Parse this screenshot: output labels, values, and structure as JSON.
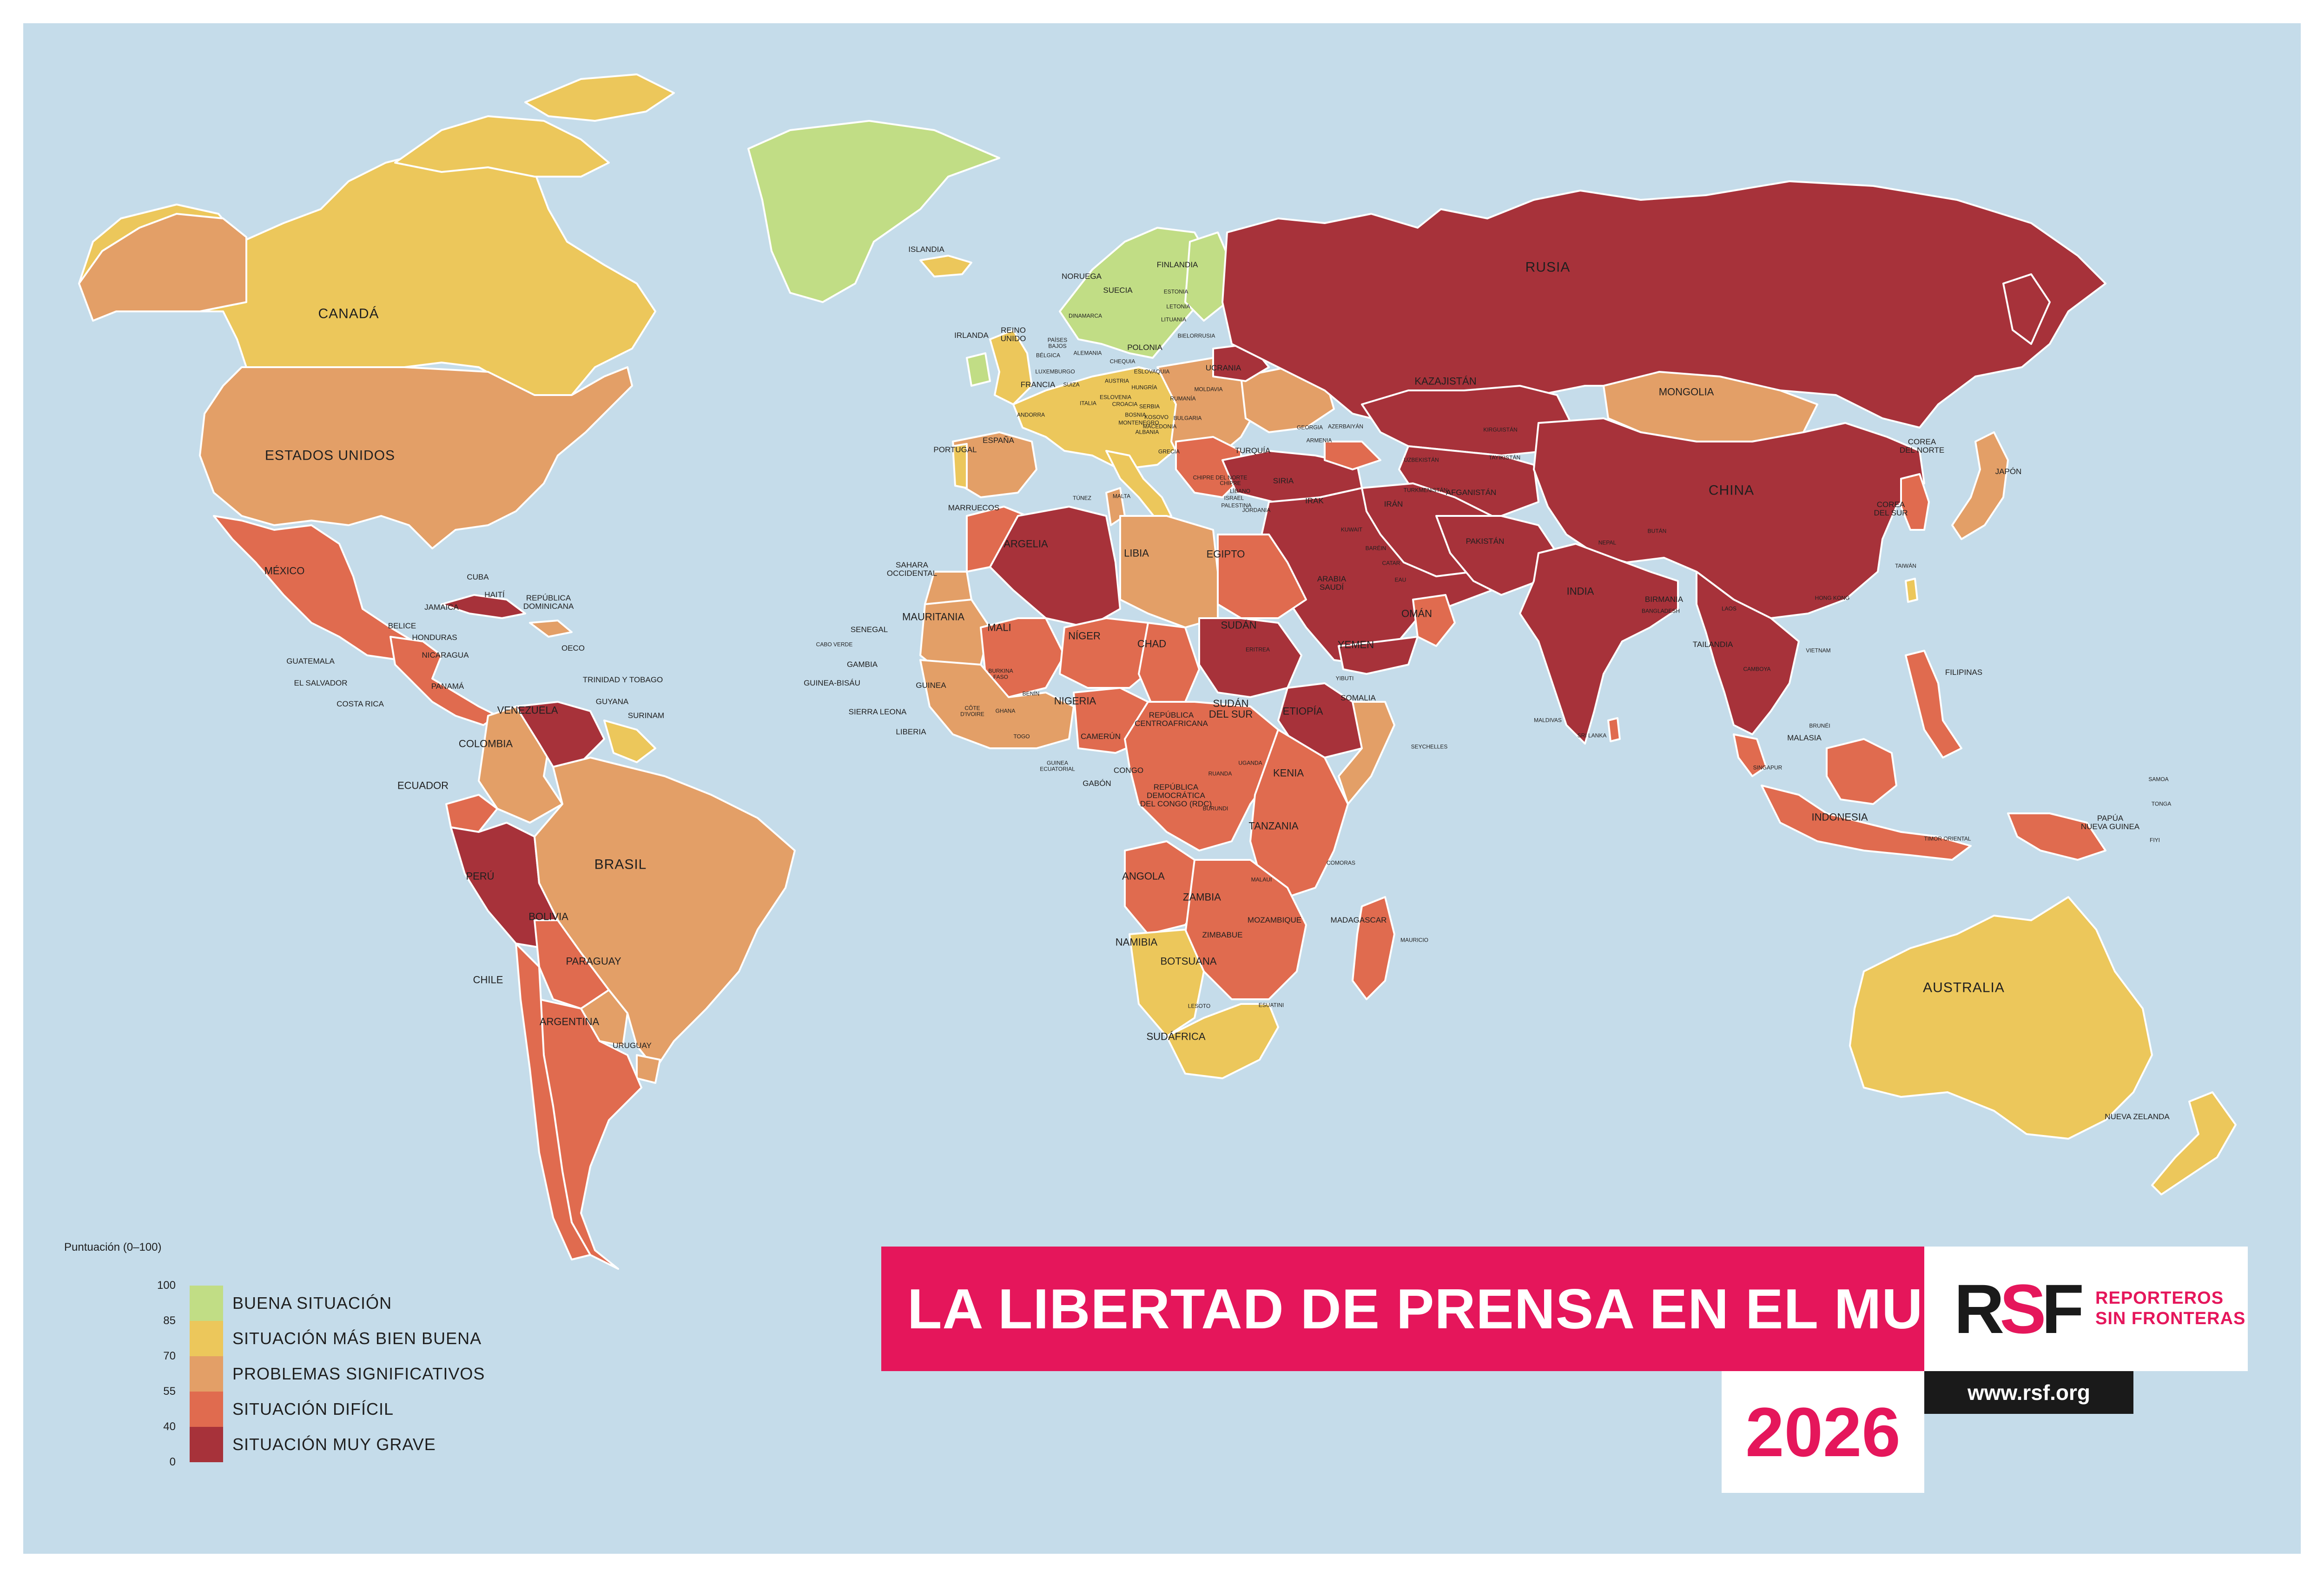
{
  "title": "LA LIBERTAD DE PRENSA EN EL MUNDO",
  "year": "2026",
  "organization": {
    "name_line1": "REPORTEROS",
    "name_line2": "SIN FRONTERAS",
    "mark": "RSF",
    "url": "www.rsf.org"
  },
  "legend": {
    "heading": "Puntuación (0–100)",
    "ticks": [
      "100",
      "85",
      "70",
      "55",
      "40",
      "0"
    ],
    "categories": [
      {
        "label": "BUENA SITUACIÓN",
        "range": [
          85,
          100
        ],
        "color": "#c1dd85"
      },
      {
        "label": "SITUACIÓN MÁS BIEN BUENA",
        "range": [
          70,
          85
        ],
        "color": "#ecc75b"
      },
      {
        "label": "PROBLEMAS SIGNIFICATIVOS",
        "range": [
          55,
          70
        ],
        "color": "#e39f67"
      },
      {
        "label": "SITUACIÓN DIFÍCIL",
        "range": [
          40,
          55
        ],
        "color": "#e06b4f"
      },
      {
        "label": "SITUACIÓN MUY GRAVE",
        "range": [
          0,
          40
        ],
        "color": "#a7323a"
      }
    ]
  },
  "colors": {
    "ocean": "#c5dcea",
    "banner": "#e5165b"
  },
  "countries": {
    "rusia": "RUSIA",
    "china": "CHINA",
    "canada": "CANADÁ",
    "estados_unidos": "ESTADOS UNIDOS",
    "brasil": "BRASIL",
    "australia": "AUSTRALIA",
    "india": "INDIA",
    "mongolia": "MONGOLIA",
    "kazajistan": "KAZAJISTÁN",
    "mexico": "MÉXICO",
    "argelia": "ARGELIA",
    "libia": "LIBIA",
    "egipto": "EGIPTO",
    "sudan": "SUDÁN",
    "sudan_sur": "SUDÁN\nDEL SUR",
    "chad": "CHAD",
    "niger": "NÍGER",
    "mali": "MALI",
    "mauritania": "MAURITANIA",
    "nigeria": "NIGERIA",
    "etiopia": "ETIOPÍA",
    "kenia": "KENIA",
    "tanzania": "TANZANIA",
    "angola": "ANGOLA",
    "zambia": "ZAMBIA",
    "namibia": "NAMIBIA",
    "botsuana": "BOTSUANA",
    "sudafrica": "SUDÁFRICA",
    "madagascar": "MADAGASCAR",
    "mozambique": "MOZAMBIQUE",
    "zimbabue": "ZIMBABUE",
    "rdc": "REPÚBLICA\nDEMOCRÁTICA\nDEL CONGO (RDC)",
    "rca": "REPÚBLICA\nCENTROAFRICANA",
    "camerun": "CAMERÚN",
    "gabon": "GABÓN",
    "congo": "CONGO",
    "somalia": "SOMALIA",
    "yemen": "YEMEN",
    "oman": "OMÁN",
    "arabia_saudi": "ARABIA\nSAUDÍ",
    "iran": "IRÁN",
    "irak": "IRAK",
    "siria": "SIRIA",
    "turquia": "TURQUÍA",
    "afganistan": "AFGANISTÁN",
    "pakistan": "PAKISTÁN",
    "birmania": "BIRMANIA",
    "tailandia": "TAILANDIA",
    "indonesia": "INDONESIA",
    "malasia": "MALASIA",
    "filipinas": "FILIPINAS",
    "japon": "JAPÓN",
    "corea_norte": "COREA\nDEL NORTE",
    "corea_sur": "COREA\nDEL SUR",
    "colombia": "COLOMBIA",
    "venezuela": "VENEZUELA",
    "peru": "PERÚ",
    "bolivia": "BOLIVIA",
    "paraguay": "PARAGUAY",
    "argentina": "ARGENTINA",
    "chile": "CHILE",
    "uruguay": "URUGUAY",
    "ecuador": "ECUADOR",
    "ucrania": "UCRANIA",
    "polonia": "POLONIA",
    "alemania": "ALEMANIA",
    "francia": "FRANCIA",
    "espana": "ESPAÑA",
    "portugal": "PORTUGAL",
    "italia": "ITALIA",
    "reino_unido": "REINO\nUNIDO",
    "irlanda": "IRLANDA",
    "islandia": "ISLANDIA",
    "noruega": "NORUEGA",
    "suecia": "SUECIA",
    "finlandia": "FINLANDIA",
    "bielorrusia": "BIELORRUSIA",
    "marruecos": "MARRUECOS",
    "tunez": "TÚNEZ",
    "sahara": "SAHARA\nOCCIDENTAL",
    "papua": "PAPÚA\nNUEVA GUINEA",
    "nueva_zelanda": "NUEVA ZELANDA",
    "cuba": "CUBA",
    "haiti": "HAITÍ",
    "rep_dominicana": "REPÚBLICA\nDOMINICANA",
    "jamaica": "JAMAICA",
    "belice": "BELICE",
    "honduras": "HONDURAS",
    "guatemala": "GUATEMALA",
    "nicaragua": "NICARAGUA",
    "el_salvador": "EL SALVADOR",
    "costa_rica": "COSTA RICA",
    "panama": "PANAMÁ",
    "guyana": "GUYANA",
    "surinam": "SURINAM",
    "trinidad": "TRINIDAD Y TOBAGO",
    "senegal": "SENEGAL",
    "gambia": "GAMBIA",
    "guinea_bisau": "GUINEA-BISÁU",
    "guinea": "GUINEA",
    "sierra_leona": "SIERRA LEONA",
    "liberia": "LIBERIA",
    "costa_marfil": "CÔTE\nD'IVOIRE",
    "ghana": "GHANA",
    "togo": "TOGO",
    "benin": "BENÍN",
    "burkina": "BURKINA\nFASO",
    "cabo_verde": "CABO VERDE",
    "guinea_ecuatorial": "GUINEA\nECUATORIAL",
    "uganda": "UGANDA",
    "ruanda": "RUANDA",
    "burundi": "BURUNDI",
    "malaui": "MALAUI",
    "lesoto": "LESOTO",
    "esuatini": "ESUATINI",
    "comoras": "COMORAS",
    "mauricio": "MAURICIO",
    "seychelles": "SEYCHELLES",
    "maldivas": "MALDIVAS",
    "sri_lanka": "SRI LANKA",
    "nepal": "NEPAL",
    "butan": "BUTÁN",
    "bangladesh": "BANGLADESH",
    "laos": "LAOS",
    "camboya": "CAMBOYA",
    "vietnam": "VIETNAM",
    "hong_kong": "HONG KONG",
    "taiwan": "TAIWÁN",
    "singapur": "SINGAPUR",
    "brunei": "BRUNÉI",
    "timor": "TIMOR ORIENTAL",
    "samoa": "SAMOA",
    "tonga": "TONGA",
    "fiyi": "FIYI",
    "uzbekistan": "UZBEKISTÁN",
    "turkmenistan": "TURKMENISTÁN",
    "kirguistan": "KIRGUISTÁN",
    "tayikistan": "TAYIKISTÁN",
    "eritrea": "ERITREA",
    "yibuti": "YIBUTI",
    "catar": "CATAR",
    "eau": "EAU",
    "grecia": "GRECIA",
    "rumania": "RUMANÍA",
    "bulgaria": "BULGARIA",
    "malta": "MALTA",
    "chipre": "CHIPRE",
    "israel": "ISRAEL",
    "palestina": "PALESTINA",
    "libano": "LÍBANO",
    "georgia": "GEORGIA",
    "armenia": "ARMENIA",
    "azerbaiyan": "AZERBAIYÁN",
    "estonia": "ESTONIA",
    "letonia": "LETONIA",
    "lituania": "LITUANIA",
    "dinamarca": "DINAMARCA",
    "belgica": "BÉLGICA",
    "paises_bajos": "PAÍSES\nBAJOS",
    "suiza": "SUIZA",
    "austria": "AUSTRIA",
    "chequia": "CHEQUIA",
    "hungria": "HUNGRÍA",
    "eslovaquia": "ESLOVAQUIA",
    "moldavia": "MOLDAVIA",
    "andorra": "ANDORRA",
    "luxemburgo": "LUXEMBURGO",
    "eslovenia": "ESLOVENIA",
    "croacia": "CROACIA",
    "serbia": "SERBIA",
    "bosnia": "BOSNIA",
    "montenegro": "MONTENEGRO",
    "albania": "ALBANIA",
    "macedonia": "MACEDONIA",
    "kosovo": "KOSOVO",
    "chipre_norte": "CHIPRE DEL NORTE",
    "jordania": "JORDANIA",
    "kuwait": "KUWAIT",
    "barein": "BARÉIN",
    "oceco": "OECO"
  }
}
